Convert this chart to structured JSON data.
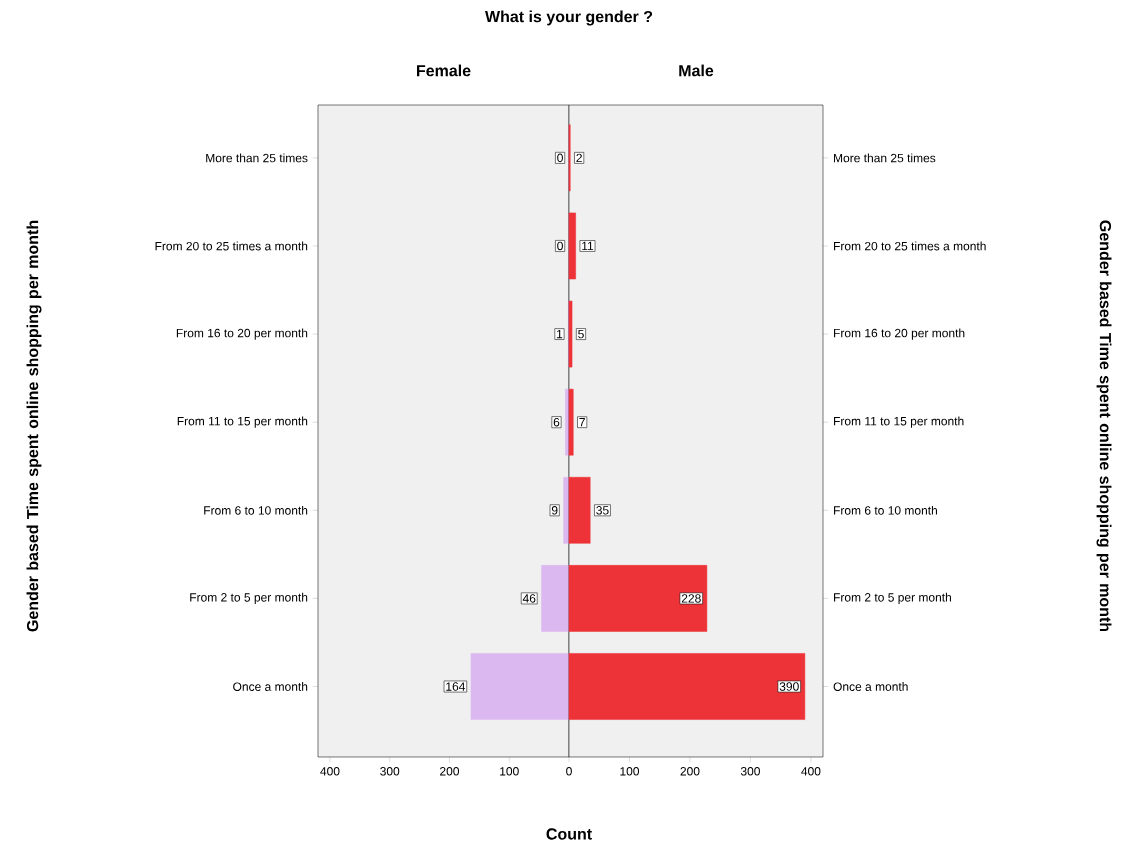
{
  "chart_data": [
    {
      "type": "bar",
      "orientation": "horizontal",
      "title": "Female",
      "xlabel": "Count",
      "ylabel": "Gender based Time spent online shopping per month",
      "annotations": [
        "What is your gender ?"
      ],
      "categories": [
        "More than 25 times",
        "From 20 to 25 times a month",
        "From 16 to 20 per month",
        "From 11 to 15 per month",
        "From 6 to 10 month",
        "From 2 to 5 per month",
        "Once a month"
      ],
      "values": [
        0,
        0,
        1,
        6,
        9,
        46,
        164
      ],
      "color": "#dcb8f0",
      "data_labels": true,
      "xlim": [
        420,
        0
      ],
      "xticks": [
        400,
        300,
        200,
        100
      ]
    },
    {
      "type": "bar",
      "orientation": "horizontal",
      "title": "Male",
      "ylabel": "Gender based Time spent online shopping per month",
      "categories": [
        "More than 25 times",
        "From 20 to 25 times a month",
        "From 16 to 20 per month",
        "From 11 to 15 per month",
        "From 6 to 10 month",
        "From 2 to 5 per month",
        "Once a month"
      ],
      "values": [
        2,
        11,
        5,
        7,
        35,
        228,
        390
      ],
      "color": "#ee3338",
      "data_labels": true,
      "xlim": [
        0,
        420
      ],
      "xticks": [
        0,
        100,
        200,
        300,
        400
      ]
    }
  ]
}
